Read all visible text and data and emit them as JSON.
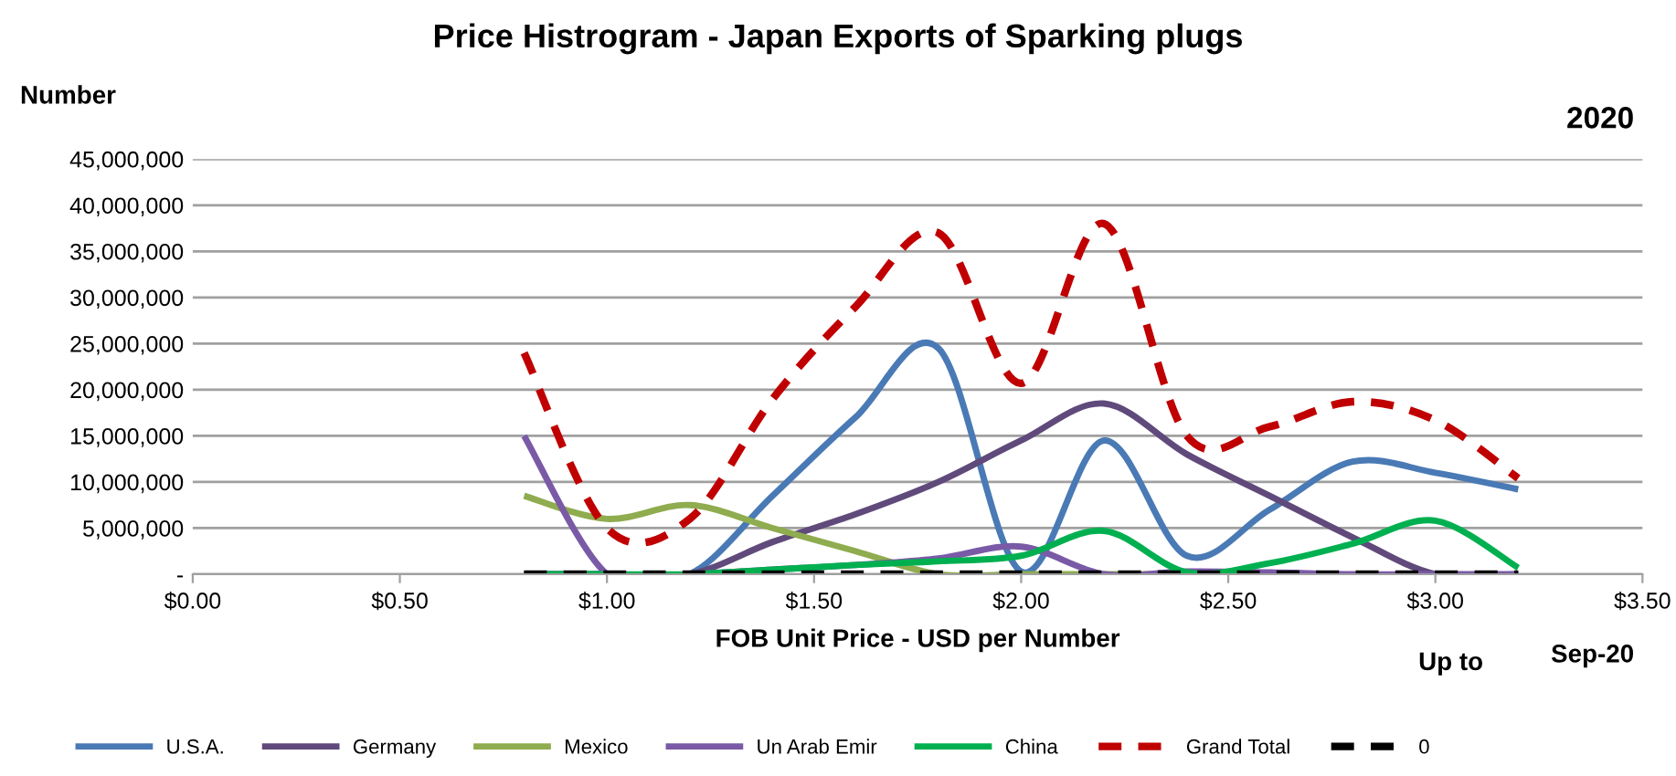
{
  "chart_data": {
    "type": "line",
    "title": "Price Histrogram - Japan Exports of Sparking plugs",
    "xlabel": "FOB Unit Price - USD per Number",
    "ylabel": "Number",
    "annotations": [
      "2020",
      "Up to",
      "Sep-20"
    ],
    "x": [
      0.8,
      1.0,
      1.2,
      1.4,
      1.6,
      1.8,
      2.0,
      2.2,
      2.4,
      2.6,
      2.8,
      3.0,
      3.2
    ],
    "series": [
      {
        "name": "U.S.A.",
        "color": "#4a7ab5",
        "values": [
          0,
          0,
          0,
          8500000,
          17000000,
          24500000,
          300000,
          14500000,
          2000000,
          7000000,
          12200000,
          11000000,
          9200000
        ]
      },
      {
        "name": "Germany",
        "color": "#604a7b",
        "values": [
          0,
          0,
          0,
          3500000,
          6500000,
          10000000,
          14500000,
          18500000,
          13000000,
          8500000,
          4000000,
          0,
          0
        ]
      },
      {
        "name": "Mexico",
        "color": "#8fac4f",
        "values": [
          8500000,
          6000000,
          7500000,
          5000000,
          2500000,
          0,
          0,
          0,
          0,
          0,
          null,
          null,
          null
        ]
      },
      {
        "name": "Un Arab Emir",
        "color": "#7a5aa6",
        "values": [
          15000000,
          0,
          0,
          500000,
          1000000,
          1700000,
          3000000,
          0,
          300000,
          200000,
          0,
          0,
          0
        ]
      },
      {
        "name": "China",
        "color": "#00b050",
        "values": [
          0,
          0,
          0,
          500000,
          1000000,
          1400000,
          2000000,
          4700000,
          200000,
          1200000,
          3300000,
          5800000,
          700000
        ]
      },
      {
        "name": "Grand Total",
        "color": "#c00000",
        "line_style": "dashed",
        "values": [
          24000000,
          5000000,
          6000000,
          19000000,
          29000000,
          37000000,
          20700000,
          38000000,
          15000000,
          16000000,
          18700000,
          16700000,
          10400000
        ]
      },
      {
        "name": "0",
        "color": "#000000",
        "line_style": "dashed",
        "values": [
          0,
          0,
          0,
          0,
          0,
          0,
          0,
          0,
          0,
          0,
          0,
          0,
          0
        ]
      }
    ],
    "xlim": [
      0,
      3.5
    ],
    "xticks": [
      {
        "value": 0,
        "label": "$0.00"
      },
      {
        "value": 0.5,
        "label": "$0.50"
      },
      {
        "value": 1,
        "label": "$1.00"
      },
      {
        "value": 1.5,
        "label": "$1.50"
      },
      {
        "value": 2,
        "label": "$2.00"
      },
      {
        "value": 2.5,
        "label": "$2.50"
      },
      {
        "value": 3,
        "label": "$3.00"
      },
      {
        "value": 3.5,
        "label": "$3.50"
      }
    ],
    "ylim": [
      0,
      45000000
    ],
    "yticks": [
      {
        "value": 0,
        "label": "-"
      },
      {
        "value": 5000000,
        "label": "5,000,000"
      },
      {
        "value": 10000000,
        "label": "10,000,000"
      },
      {
        "value": 15000000,
        "label": "15,000,000"
      },
      {
        "value": 20000000,
        "label": "20,000,000"
      },
      {
        "value": 25000000,
        "label": "25,000,000"
      },
      {
        "value": 30000000,
        "label": "30,000,000"
      },
      {
        "value": 35000000,
        "label": "35,000,000"
      },
      {
        "value": 40000000,
        "label": "40,000,000"
      },
      {
        "value": 45000000,
        "label": "45,000,000"
      }
    ],
    "grid": "y",
    "legend": "bottom",
    "marker": "none",
    "line_style": "solid"
  }
}
